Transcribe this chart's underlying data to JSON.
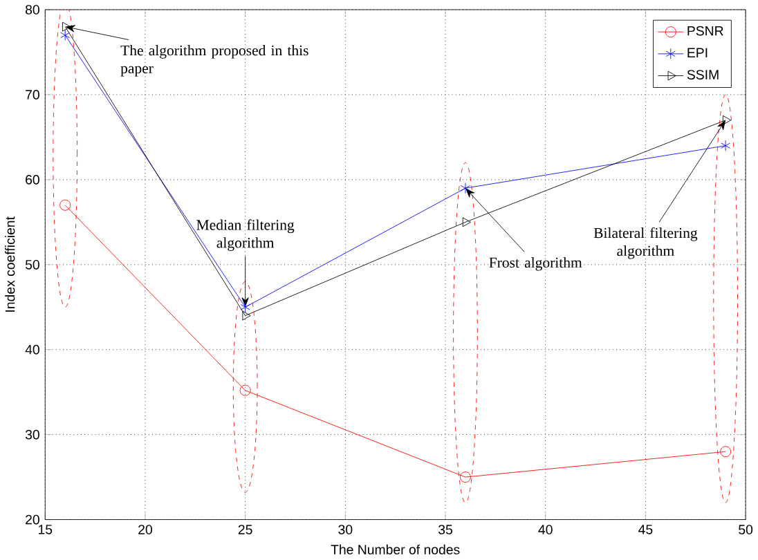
{
  "chart_data": {
    "type": "line",
    "xlabel": "The Number of nodes",
    "ylabel": "Index coefficient",
    "x": [
      16,
      25,
      36,
      49
    ],
    "series": [
      {
        "name": "PSNR",
        "color": "#ff0000",
        "marker": "circle",
        "values": [
          57,
          35.2,
          25,
          28
        ]
      },
      {
        "name": "EPI",
        "color": "#0000ff",
        "marker": "cross",
        "values": [
          77,
          45,
          59,
          64
        ]
      },
      {
        "name": "SSIM",
        "color": "#000000",
        "marker": "triangle",
        "values": [
          78,
          44,
          55,
          67
        ]
      }
    ],
    "xlim": [
      15,
      50
    ],
    "xticks": [
      15,
      20,
      25,
      30,
      35,
      40,
      45,
      50
    ],
    "ylim": [
      20,
      80
    ],
    "yticks": [
      20,
      30,
      40,
      50,
      60,
      70,
      80
    ],
    "grid": true,
    "legend": "top right",
    "annotations": [
      {
        "text": "The algorithm proposed in this paper",
        "x": 16,
        "y": 78
      },
      {
        "text": "Median filtering algorithm",
        "x": 25,
        "y": 45
      },
      {
        "text": "Frost algorithm",
        "x": 36,
        "y": 59
      },
      {
        "text": "Bilateral filtering algorithm",
        "x": 49,
        "y": 67
      }
    ]
  }
}
